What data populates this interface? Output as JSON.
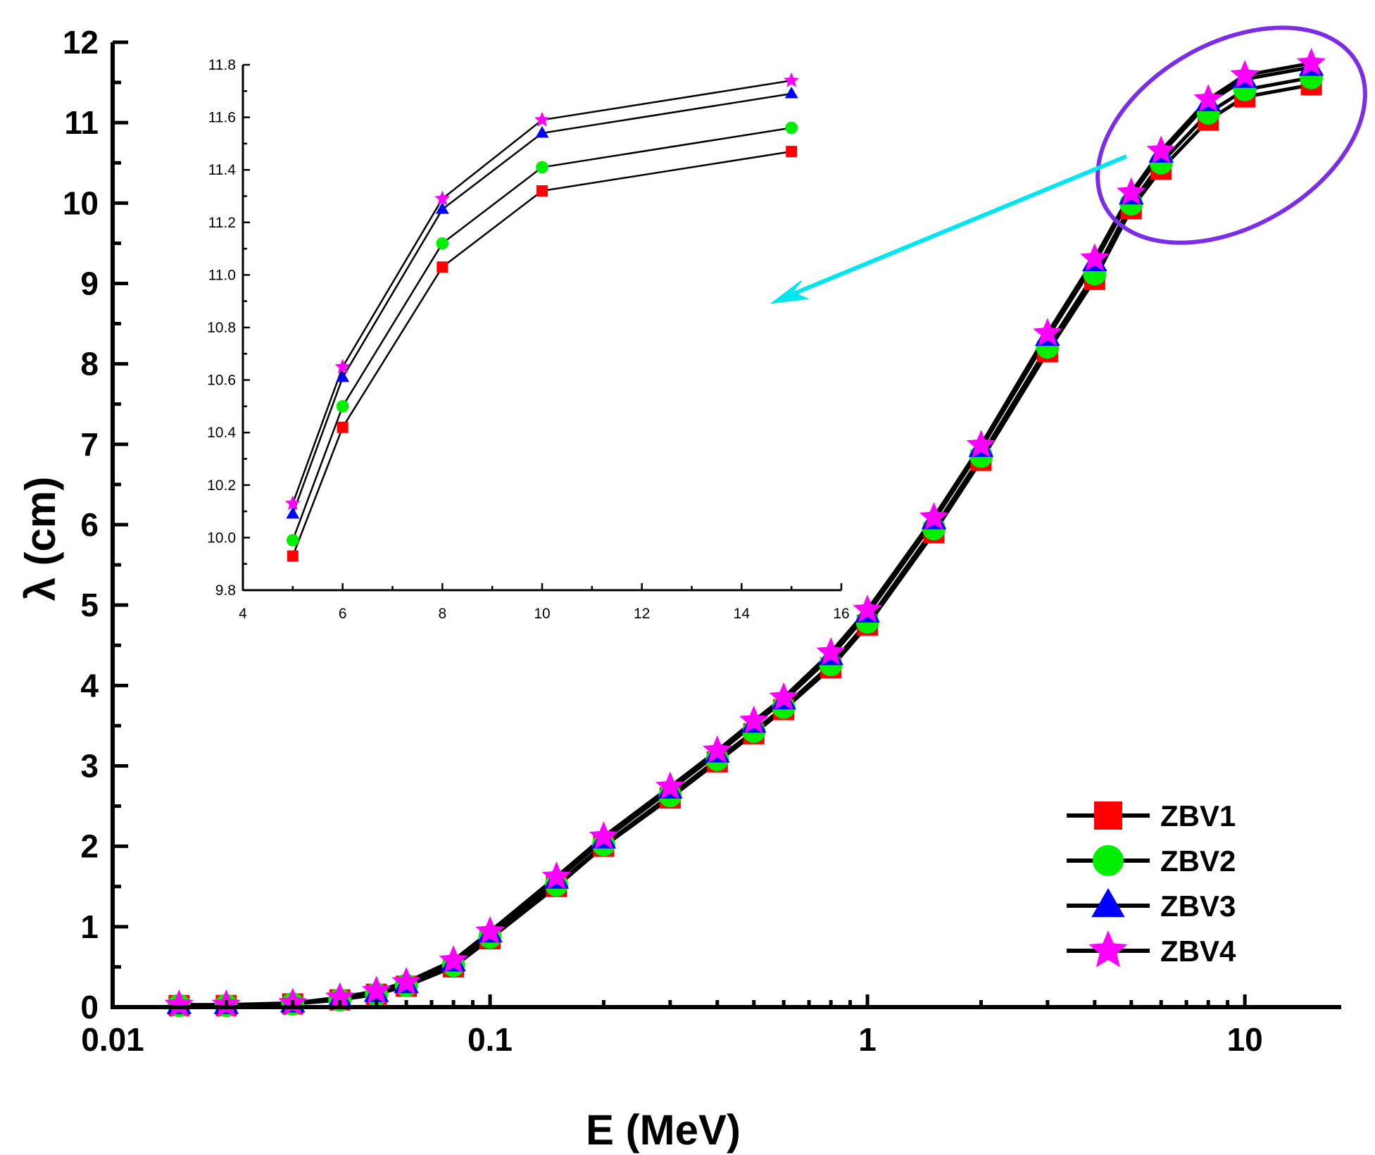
{
  "chart_data": [
    {
      "type": "line",
      "xlabel": "E (MeV)",
      "ylabel": "λ (cm)",
      "xscale": "log",
      "xlim": [
        0.01,
        18
      ],
      "ylim": [
        0,
        12
      ],
      "xticks": [
        0.01,
        0.1,
        1,
        10
      ],
      "xtick_labels": [
        "0.01",
        "0.1",
        "1",
        "10"
      ],
      "yticks": [
        0,
        1,
        2,
        3,
        4,
        5,
        6,
        7,
        8,
        9,
        10,
        11,
        12
      ],
      "ytick_labels": [
        "0",
        "1",
        "2",
        "3",
        "4",
        "5",
        "6",
        "7",
        "8",
        "9",
        "10",
        "11",
        "12"
      ],
      "x": [
        0.015,
        0.02,
        0.03,
        0.04,
        0.05,
        0.06,
        0.08,
        0.1,
        0.15,
        0.2,
        0.3,
        0.4,
        0.5,
        0.6,
        0.8,
        1,
        1.5,
        2,
        3,
        4,
        5,
        6,
        8,
        10,
        15
      ],
      "series": [
        {
          "name": "ZBV1",
          "marker": "square",
          "color": "#ff0000",
          "values": [
            0.02,
            0.02,
            0.04,
            0.09,
            0.16,
            0.26,
            0.5,
            0.85,
            1.5,
            2.0,
            2.6,
            3.05,
            3.4,
            3.7,
            4.22,
            4.75,
            5.9,
            6.8,
            8.15,
            9.05,
            9.93,
            10.42,
            11.03,
            11.32,
            11.47
          ]
        },
        {
          "name": "ZBV2",
          "marker": "circle",
          "color": "#00ee00",
          "values": [
            0.02,
            0.02,
            0.04,
            0.09,
            0.16,
            0.27,
            0.52,
            0.87,
            1.52,
            2.02,
            2.63,
            3.08,
            3.43,
            3.73,
            4.26,
            4.79,
            5.95,
            6.85,
            8.21,
            9.12,
            9.99,
            10.5,
            11.12,
            11.41,
            11.56
          ]
        },
        {
          "name": "ZBV3",
          "marker": "triangle",
          "color": "#0000ff",
          "values": [
            0.02,
            0.02,
            0.04,
            0.1,
            0.17,
            0.28,
            0.55,
            0.91,
            1.58,
            2.08,
            2.7,
            3.15,
            3.52,
            3.81,
            4.36,
            4.89,
            6.05,
            6.95,
            8.33,
            9.26,
            10.09,
            10.61,
            11.25,
            11.54,
            11.69
          ]
        },
        {
          "name": "ZBV4",
          "marker": "star",
          "color": "#ff00ff",
          "values": [
            0.03,
            0.03,
            0.05,
            0.12,
            0.2,
            0.31,
            0.58,
            0.94,
            1.62,
            2.12,
            2.74,
            3.19,
            3.56,
            3.85,
            4.41,
            4.94,
            6.09,
            6.99,
            8.38,
            9.31,
            10.13,
            10.65,
            11.29,
            11.59,
            11.74
          ]
        }
      ],
      "legend_position": "bottom-right",
      "annotation": "highlighted region (5–15 MeV) enlarged in inset"
    },
    {
      "type": "line",
      "xlim": [
        4,
        16
      ],
      "ylim": [
        9.8,
        11.8
      ],
      "xticks": [
        4,
        6,
        8,
        10,
        12,
        14,
        16
      ],
      "xtick_labels": [
        "4",
        "6",
        "8",
        "10",
        "12",
        "14",
        "16"
      ],
      "yticks": [
        9.8,
        10.0,
        10.2,
        10.4,
        10.6,
        10.8,
        11.0,
        11.2,
        11.4,
        11.6,
        11.8
      ],
      "ytick_labels": [
        "9.8",
        "10.0",
        "10.2",
        "10.4",
        "10.6",
        "10.8",
        "11.0",
        "11.2",
        "11.4",
        "11.6",
        "11.8"
      ],
      "x": [
        5,
        6,
        8,
        10,
        15
      ],
      "series": [
        {
          "name": "ZBV1",
          "marker": "square",
          "color": "#ff0000",
          "values": [
            9.93,
            10.42,
            11.03,
            11.32,
            11.47
          ]
        },
        {
          "name": "ZBV2",
          "marker": "circle",
          "color": "#00ee00",
          "values": [
            9.99,
            10.5,
            11.12,
            11.41,
            11.56
          ]
        },
        {
          "name": "ZBV3",
          "marker": "triangle",
          "color": "#0000ff",
          "values": [
            10.09,
            10.61,
            11.25,
            11.54,
            11.69
          ]
        },
        {
          "name": "ZBV4",
          "marker": "star",
          "color": "#ff00ff",
          "values": [
            10.13,
            10.65,
            11.29,
            11.59,
            11.74
          ]
        }
      ]
    }
  ],
  "colors": {
    "ellipse": "#7b2ee6",
    "arrow": "#00e5ee",
    "axes": "#000000"
  }
}
